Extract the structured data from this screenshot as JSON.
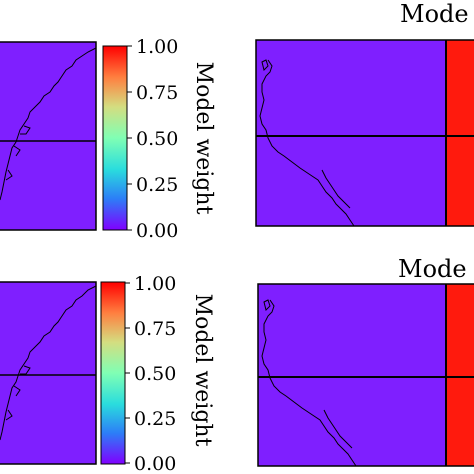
{
  "chart_data": [
    {
      "type": "heatmap",
      "title": "",
      "description_of_panel": null,
      "colorbar": {
        "label": "Model weight",
        "ticks": [
          "0.00",
          "0.25",
          "0.50",
          "0.75",
          "1.00"
        ],
        "range": [
          0,
          1
        ]
      }
    }
  ],
  "figure": {
    "colormap": {
      "name": "rainbow",
      "stops": [
        "#8000ff",
        "#2c7ef7",
        "#2adddd",
        "#80ffb4",
        "#d4dd80",
        "#ff7f40",
        "#ff0000"
      ]
    },
    "panels": [
      {
        "id": "top-left",
        "weight_background": 0.0
      },
      {
        "id": "top-right",
        "title": "Mode",
        "weight_background": 0.0,
        "weight_right_block": 1.0
      },
      {
        "id": "bottom-left",
        "weight_background": 0.0
      },
      {
        "id": "bottom-right",
        "title": "Mode",
        "weight_background": 0.0,
        "weight_right_block": 1.0
      }
    ],
    "colorbars": [
      {
        "label": "Model weight",
        "ticks": [
          "0.00",
          "0.25",
          "0.50",
          "0.75",
          "1.00"
        ]
      },
      {
        "label": "Model weight",
        "ticks": [
          "0.00",
          "0.25",
          "0.50",
          "0.75",
          "1.00"
        ]
      }
    ]
  }
}
